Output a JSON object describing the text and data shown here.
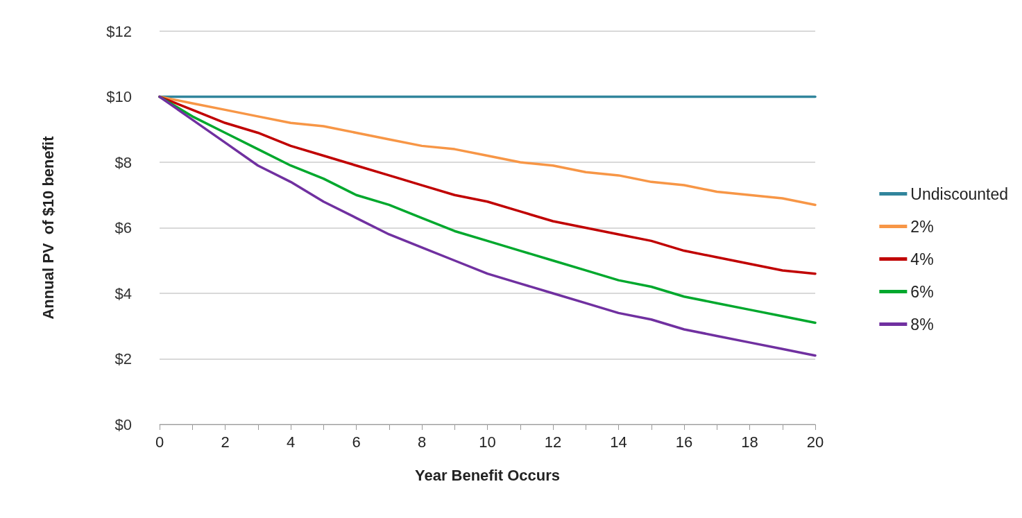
{
  "chart_data": {
    "type": "line",
    "xlabel": "Year Benefit Occurs",
    "ylabel": "Annual PV  of $10 benefit",
    "x": [
      0,
      1,
      2,
      3,
      4,
      5,
      6,
      7,
      8,
      9,
      10,
      11,
      12,
      13,
      14,
      15,
      16,
      17,
      18,
      19,
      20
    ],
    "series": [
      {
        "name": "Undiscounted",
        "color": "#31859c",
        "values": [
          10,
          10,
          10,
          10,
          10,
          10,
          10,
          10,
          10,
          10,
          10,
          10,
          10,
          10,
          10,
          10,
          10,
          10,
          10,
          10,
          10
        ]
      },
      {
        "name": "2%",
        "color": "#f79646",
        "values": [
          10,
          9.8,
          9.6,
          9.4,
          9.2,
          9.1,
          8.9,
          8.7,
          8.5,
          8.4,
          8.2,
          8.0,
          7.9,
          7.7,
          7.6,
          7.4,
          7.3,
          7.1,
          7.0,
          6.9,
          6.7
        ]
      },
      {
        "name": "4%",
        "color": "#c00000",
        "values": [
          10,
          9.6,
          9.2,
          8.9,
          8.5,
          8.2,
          7.9,
          7.6,
          7.3,
          7.0,
          6.8,
          6.5,
          6.2,
          6.0,
          5.8,
          5.6,
          5.3,
          5.1,
          4.9,
          4.7,
          4.6
        ]
      },
      {
        "name": "6%",
        "color": "#00a82d",
        "values": [
          10,
          9.4,
          8.9,
          8.4,
          7.9,
          7.5,
          7.0,
          6.7,
          6.3,
          5.9,
          5.6,
          5.3,
          5.0,
          4.7,
          4.4,
          4.2,
          3.9,
          3.7,
          3.5,
          3.3,
          3.1
        ]
      },
      {
        "name": "8%",
        "color": "#7030a0",
        "values": [
          10,
          9.3,
          8.6,
          7.9,
          7.4,
          6.8,
          6.3,
          5.8,
          5.4,
          5.0,
          4.6,
          4.3,
          4.0,
          3.7,
          3.4,
          3.2,
          2.9,
          2.7,
          2.5,
          2.3,
          2.1
        ]
      }
    ],
    "xlim": [
      0,
      20
    ],
    "xticks": [
      0,
      {
        "value": 1,
        "label": null
      },
      2,
      {
        "value": 3,
        "label": null
      },
      4,
      {
        "value": 5,
        "label": null
      },
      6,
      {
        "value": 7,
        "label": null
      },
      8,
      {
        "value": 9,
        "label": null
      },
      10,
      {
        "value": 11,
        "label": null
      },
      12,
      {
        "value": 13,
        "label": null
      },
      14,
      {
        "value": 15,
        "label": null
      },
      16,
      {
        "value": 17,
        "label": null
      },
      18,
      {
        "value": 19,
        "label": null
      },
      20
    ],
    "ylim": [
      0,
      12
    ],
    "yticks": [
      {
        "value": 0,
        "label": "$0"
      },
      {
        "value": 2,
        "label": "$2"
      },
      {
        "value": 4,
        "label": "$4"
      },
      {
        "value": 6,
        "label": "$6"
      },
      {
        "value": 8,
        "label": "$8"
      },
      {
        "value": 10,
        "label": "$10"
      },
      {
        "value": 12,
        "label": "$12"
      }
    ],
    "grid": "y",
    "legend": "right",
    "marker": "none",
    "line_style": "solid"
  }
}
